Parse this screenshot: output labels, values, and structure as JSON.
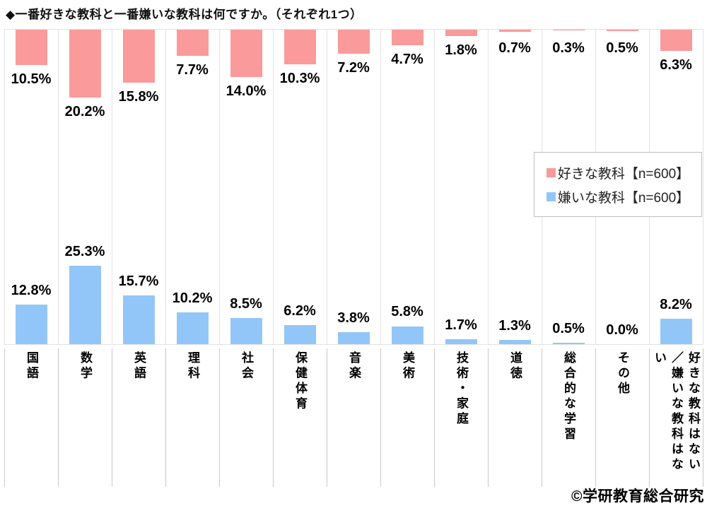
{
  "title": "◆一番好きな教科と一番嫌いな教科は何ですか。（それぞれ1つ）",
  "legend": [
    {
      "label": "好きな教科【n=600】",
      "color": "#fa9a9a"
    },
    {
      "label": "嫌いな教科【n=600】",
      "color": "#93c6f8"
    }
  ],
  "copyright": "©学研教育総合研究",
  "chart_data": {
    "type": "bar",
    "layout": "dual-baseline: favorite bars hang down from top edge, disliked bars rise up from bottom baseline",
    "grid": "vertical column separators on",
    "legend_position": "middle-right",
    "value_suffix": "%",
    "ylim": [
      0,
      26
    ],
    "categories": [
      "国語",
      "数学",
      "英語",
      "理科",
      "社会",
      "保健体育",
      "音楽",
      "美術",
      "技術・家庭",
      "道徳",
      "総合的な学習",
      "その他",
      "好きな教科はない\n／嫌いな教科はない"
    ],
    "series": [
      {
        "name": "好きな教科【n=600】",
        "color": "#fa9a9a",
        "values": [
          10.5,
          20.2,
          15.8,
          7.7,
          14.0,
          10.3,
          7.2,
          4.7,
          1.8,
          0.7,
          0.3,
          0.5,
          6.3
        ]
      },
      {
        "name": "嫌いな教科【n=600】",
        "color": "#93c6f8",
        "values": [
          12.8,
          25.3,
          15.7,
          10.2,
          8.5,
          6.2,
          3.8,
          5.8,
          1.7,
          1.3,
          0.5,
          0.0,
          8.2
        ]
      }
    ]
  }
}
